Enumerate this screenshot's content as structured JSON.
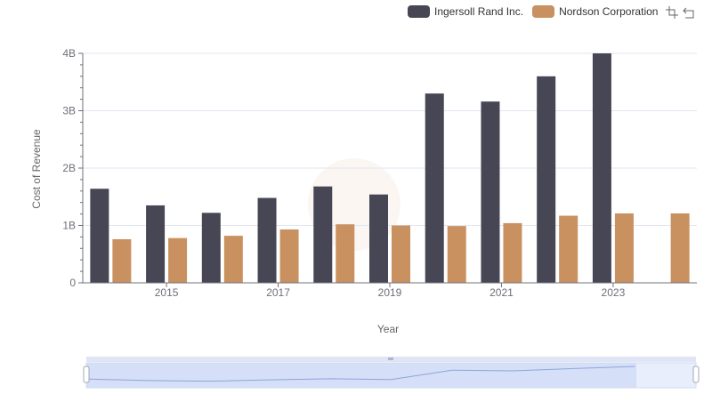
{
  "legend": [
    {
      "name": "Ingersoll Rand Inc.",
      "color": "#464655"
    },
    {
      "name": "Nordson Corporation",
      "color": "#c8915f"
    }
  ],
  "toolbox": {
    "icons": [
      "zoom-icon",
      "restore-icon"
    ]
  },
  "chart_data": {
    "type": "bar",
    "title": "",
    "xlabel": "Year",
    "ylabel": "Cost of Revenue",
    "x_ticks": [
      "2015",
      "2017",
      "2019",
      "2021",
      "2023"
    ],
    "y_ticks": [
      "0",
      "1B",
      "2B",
      "3B",
      "4B"
    ],
    "ylim": [
      0,
      4000000000
    ],
    "categories": [
      2014,
      2015,
      2016,
      2017,
      2018,
      2019,
      2020,
      2021,
      2022,
      2023,
      2024
    ],
    "series": [
      {
        "name": "Ingersoll Rand Inc.",
        "color": "#464655",
        "values": [
          1640000000,
          1350000000,
          1220000000,
          1480000000,
          1680000000,
          1540000000,
          3300000000,
          3160000000,
          3600000000,
          4000000000,
          null
        ]
      },
      {
        "name": "Nordson Corporation",
        "color": "#c8915f",
        "values": [
          760000000,
          780000000,
          820000000,
          930000000,
          1020000000,
          1000000000,
          990000000,
          1040000000,
          1170000000,
          1210000000,
          1210000000
        ]
      }
    ],
    "grid": true,
    "legend_position": "top-right"
  }
}
